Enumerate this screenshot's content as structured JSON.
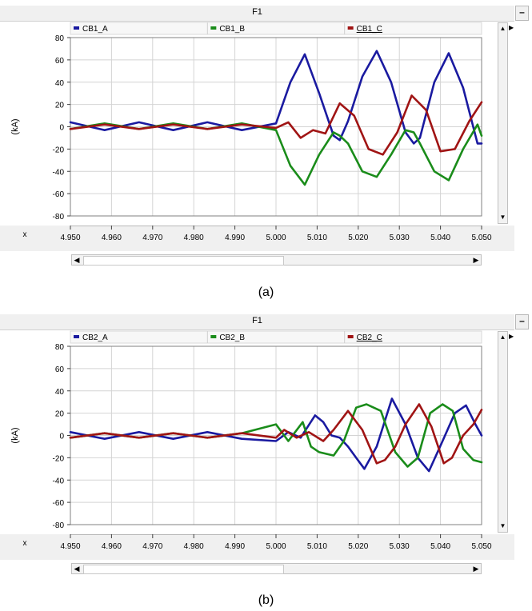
{
  "panels": [
    {
      "window_title": "F1",
      "caption": "(a)",
      "minimize_label": "–",
      "legend": [
        {
          "label": "CB1_A",
          "color": "#1a1aa0"
        },
        {
          "label": "CB1_B",
          "color": "#1a8c1a"
        },
        {
          "label": "CB1_C",
          "color": "#a01414"
        }
      ],
      "ylabel": "(kA)",
      "xlabel": "x"
    },
    {
      "window_title": "F1",
      "caption": "(b)",
      "minimize_label": "–",
      "legend": [
        {
          "label": "CB2_A",
          "color": "#1a1aa0"
        },
        {
          "label": "CB2_B",
          "color": "#1a8c1a"
        },
        {
          "label": "CB2_C",
          "color": "#a01414"
        }
      ],
      "ylabel": "(kA)",
      "xlabel": "x"
    }
  ],
  "chart_data": [
    {
      "type": "line",
      "xlabel": "x",
      "ylabel": "(kA)",
      "xlim": [
        4.95,
        5.05
      ],
      "ylim": [
        -80,
        80
      ],
      "xticks": [
        "4.950",
        "4.960",
        "4.970",
        "4.980",
        "4.990",
        "5.000",
        "5.010",
        "5.020",
        "5.030",
        "5.040",
        "5.050"
      ],
      "yticks": [
        "80",
        "60",
        "40",
        "20",
        "0",
        "-20",
        "-40",
        "-60",
        "-80"
      ],
      "grid": true,
      "legend_position": "top",
      "series": [
        {
          "name": "CB1_A",
          "color": "#1a1aa0",
          "x": [
            4.95,
            4.9583,
            4.9667,
            4.975,
            4.9833,
            4.9917,
            5.0,
            5.0035,
            5.007,
            5.0105,
            5.014,
            5.0155,
            5.0175,
            5.021,
            5.0245,
            5.028,
            5.0315,
            5.0335,
            5.035,
            5.0385,
            5.042,
            5.0455,
            5.049,
            5.05
          ],
          "y": [
            4,
            -3,
            4,
            -3,
            4,
            -3,
            3,
            40,
            65,
            30,
            -8,
            -12,
            5,
            45,
            68,
            40,
            -5,
            -15,
            -10,
            40,
            66,
            35,
            -15,
            -15
          ]
        },
        {
          "name": "CB1_B",
          "color": "#1a8c1a",
          "x": [
            4.95,
            4.9583,
            4.9667,
            4.975,
            4.9833,
            4.9917,
            5.0,
            5.0035,
            5.007,
            5.0105,
            5.014,
            5.0155,
            5.0175,
            5.021,
            5.0245,
            5.028,
            5.0315,
            5.0335,
            5.035,
            5.0385,
            5.042,
            5.0455,
            5.049,
            5.05
          ],
          "y": [
            -2,
            3,
            -2,
            3,
            -2,
            3,
            -3,
            -35,
            -52,
            -25,
            -5,
            -8,
            -15,
            -40,
            -45,
            -25,
            -3,
            -5,
            -15,
            -40,
            -48,
            -20,
            2,
            -8
          ]
        },
        {
          "name": "CB1_C",
          "color": "#a01414",
          "x": [
            4.95,
            4.9583,
            4.9667,
            4.975,
            4.9833,
            4.9917,
            5.0,
            5.003,
            5.006,
            5.009,
            5.012,
            5.0155,
            5.019,
            5.0225,
            5.026,
            5.0295,
            5.033,
            5.0365,
            5.04,
            5.0435,
            5.047,
            5.05
          ],
          "y": [
            -2,
            2,
            -2,
            2,
            -2,
            2,
            -1,
            4,
            -10,
            -3,
            -6,
            21,
            10,
            -20,
            -25,
            -5,
            28,
            15,
            -22,
            -20,
            5,
            22
          ]
        }
      ]
    },
    {
      "type": "line",
      "xlabel": "x",
      "ylabel": "(kA)",
      "xlim": [
        4.95,
        5.05
      ],
      "ylim": [
        -80,
        80
      ],
      "xticks": [
        "4.950",
        "4.960",
        "4.970",
        "4.980",
        "4.990",
        "5.000",
        "5.010",
        "5.020",
        "5.030",
        "5.040",
        "5.050"
      ],
      "yticks": [
        "80",
        "60",
        "40",
        "20",
        "0",
        "-20",
        "-40",
        "-60",
        "-80"
      ],
      "grid": true,
      "legend_position": "top",
      "series": [
        {
          "name": "CB2_A",
          "color": "#1a1aa0",
          "x": [
            4.95,
            4.9583,
            4.9667,
            4.975,
            4.9833,
            4.9917,
            5.0,
            5.003,
            5.006,
            5.0095,
            5.0115,
            5.0135,
            5.0155,
            5.0175,
            5.0195,
            5.0215,
            5.0245,
            5.0282,
            5.0315,
            5.0345,
            5.0372,
            5.0405,
            5.0435,
            5.0462,
            5.0485,
            5.05
          ],
          "y": [
            3,
            -3,
            3,
            -3,
            3,
            -3,
            -5,
            3,
            -2,
            18,
            12,
            0,
            -2,
            -10,
            -20,
            -30,
            -10,
            33,
            10,
            -20,
            -32,
            -5,
            20,
            27,
            10,
            0
          ]
        },
        {
          "name": "CB2_B",
          "color": "#1a8c1a",
          "x": [
            4.95,
            4.9583,
            4.9667,
            4.975,
            4.9833,
            4.9917,
            5.0,
            5.003,
            5.0065,
            5.0085,
            5.0105,
            5.014,
            5.0165,
            5.0195,
            5.022,
            5.0255,
            5.029,
            5.032,
            5.0345,
            5.0375,
            5.0405,
            5.043,
            5.0455,
            5.048,
            5.05
          ],
          "y": [
            -2,
            2,
            -2,
            2,
            -2,
            2,
            10,
            -5,
            12,
            -10,
            -15,
            -18,
            -5,
            25,
            28,
            22,
            -15,
            -28,
            -20,
            20,
            28,
            22,
            -12,
            -22,
            -24
          ]
        },
        {
          "name": "CB2_C",
          "color": "#a01414",
          "x": [
            4.95,
            4.9583,
            4.9667,
            4.975,
            4.9833,
            4.9917,
            5.0,
            5.002,
            5.005,
            5.008,
            5.0115,
            5.014,
            5.0175,
            5.021,
            5.0245,
            5.0265,
            5.029,
            5.0315,
            5.0348,
            5.0378,
            5.0408,
            5.0428,
            5.0455,
            5.048,
            5.05
          ],
          "y": [
            -2,
            2,
            -2,
            2,
            -2,
            2,
            -2,
            5,
            -2,
            3,
            -5,
            5,
            22,
            5,
            -25,
            -22,
            -10,
            10,
            28,
            8,
            -25,
            -20,
            0,
            10,
            23
          ]
        }
      ]
    }
  ]
}
